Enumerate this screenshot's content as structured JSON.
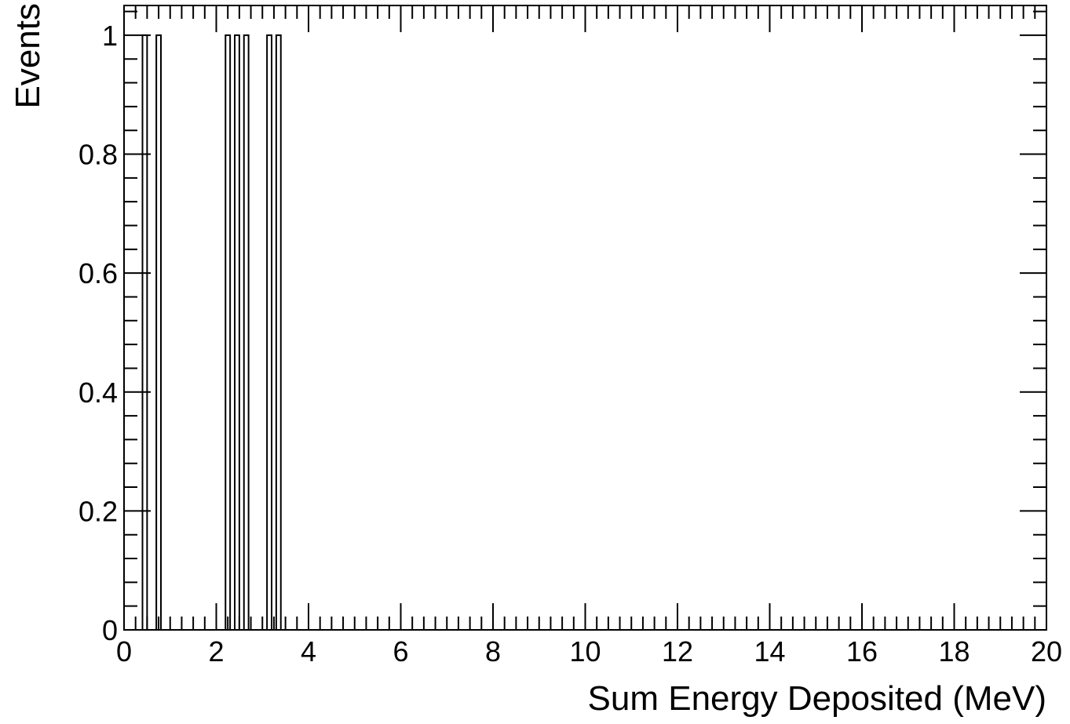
{
  "chart_data": {
    "type": "bar",
    "title": "",
    "xlabel": "Sum Energy Deposited (MeV)",
    "ylabel": "Events",
    "xlim": [
      0,
      20
    ],
    "ylim": [
      0,
      1.05
    ],
    "x_ticks": [
      0,
      2,
      4,
      6,
      8,
      10,
      12,
      14,
      16,
      18,
      20
    ],
    "y_ticks": [
      0,
      0.2,
      0.4,
      0.6,
      0.8,
      1
    ],
    "x_tick_labels": [
      "0",
      "2",
      "4",
      "6",
      "8",
      "10",
      "12",
      "14",
      "16",
      "18",
      "20"
    ],
    "y_tick_labels": [
      "0",
      "0.2",
      "0.4",
      "0.6",
      "0.8",
      "1"
    ],
    "bin_width": 0.1,
    "bins": [
      {
        "x_low": 0.4,
        "x_high": 0.5,
        "value": 1
      },
      {
        "x_low": 0.7,
        "x_high": 0.8,
        "value": 1
      },
      {
        "x_low": 2.2,
        "x_high": 2.3,
        "value": 1
      },
      {
        "x_low": 2.4,
        "x_high": 2.5,
        "value": 1
      },
      {
        "x_low": 2.6,
        "x_high": 2.7,
        "value": 1
      },
      {
        "x_low": 3.1,
        "x_high": 3.2,
        "value": 1
      },
      {
        "x_low": 3.3,
        "x_high": 3.4,
        "value": 1
      }
    ],
    "grid": false,
    "legend": "none",
    "line_color": "#000000",
    "fill_color": "none"
  }
}
